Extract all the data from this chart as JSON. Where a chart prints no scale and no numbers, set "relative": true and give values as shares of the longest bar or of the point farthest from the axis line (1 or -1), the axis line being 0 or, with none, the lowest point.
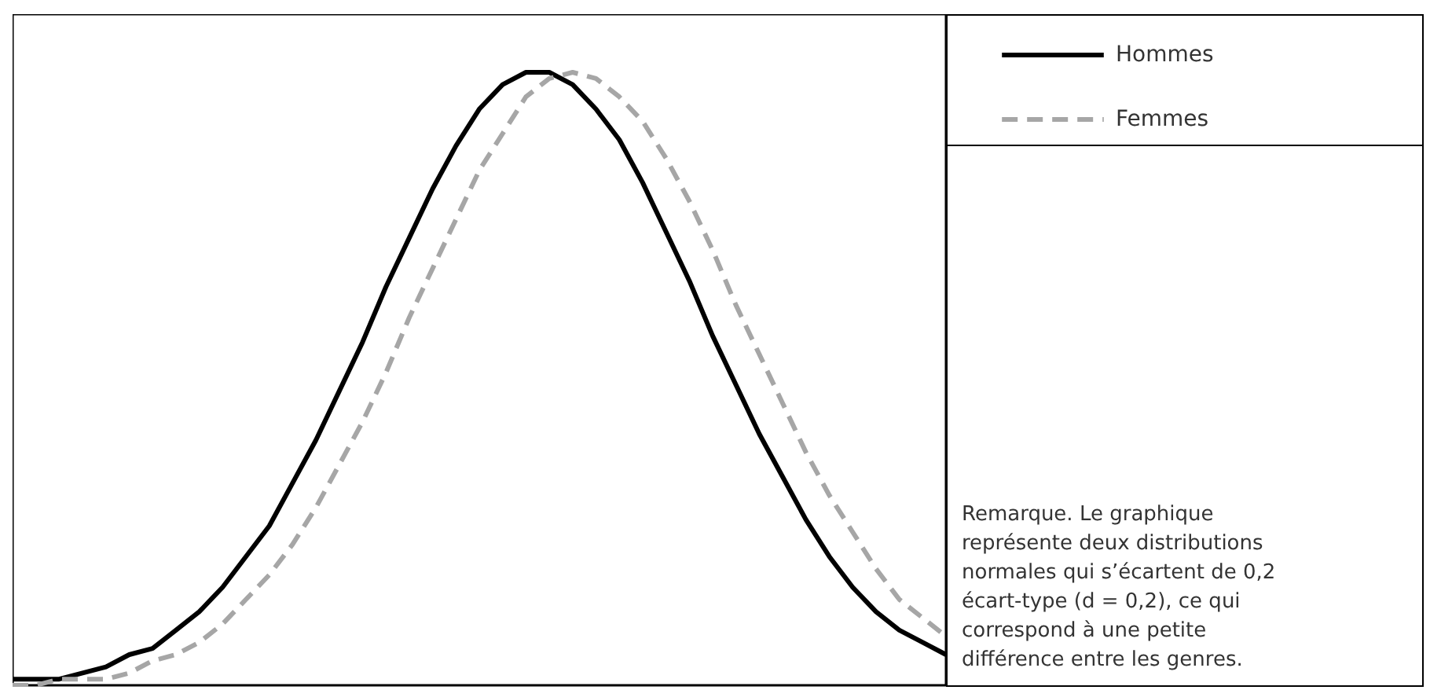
{
  "chart_data": {
    "type": "line",
    "relative": true,
    "legend": "top right",
    "marker": "none",
    "categories": [
      null,
      null,
      null,
      null,
      null,
      null,
      null,
      null,
      null,
      null,
      null,
      null,
      null,
      null,
      null,
      null,
      null,
      null,
      null,
      null,
      null,
      null,
      null,
      null,
      null,
      null,
      null,
      null,
      null,
      null,
      null,
      null,
      null,
      null,
      null,
      null,
      null,
      null,
      null,
      null,
      null
    ],
    "series": [
      {
        "name": "Hommes",
        "color": "#000000",
        "line_style": "solid",
        "values": [
          0.01,
          0.01,
          0.01,
          0.02,
          0.03,
          0.05,
          0.06,
          0.09,
          0.12,
          0.16,
          0.21,
          0.26,
          0.33,
          0.4,
          0.48,
          0.56,
          0.65,
          0.73,
          0.81,
          0.88,
          0.94,
          0.98,
          1.0,
          1.0,
          0.98,
          0.94,
          0.89,
          0.82,
          0.74,
          0.66,
          0.57,
          0.49,
          0.41,
          0.34,
          0.27,
          0.21,
          0.16,
          0.12,
          0.09,
          0.07,
          0.05
        ]
      },
      {
        "name": "Femmes",
        "color": "#a6a6a6",
        "line_style": "dashed",
        "values": [
          0.0,
          0.0,
          0.01,
          0.01,
          0.01,
          0.02,
          0.04,
          0.05,
          0.07,
          0.1,
          0.14,
          0.18,
          0.23,
          0.29,
          0.36,
          0.43,
          0.51,
          0.6,
          0.68,
          0.76,
          0.84,
          0.9,
          0.96,
          0.99,
          1.0,
          0.99,
          0.96,
          0.92,
          0.86,
          0.79,
          0.71,
          0.62,
          0.54,
          0.46,
          0.38,
          0.31,
          0.25,
          0.19,
          0.14,
          0.11,
          0.08
        ]
      }
    ],
    "annotations": [
      "Remarque. Le graphique représente deux distributions normales qui s’écartent de 0,2 écart-type (d = 0,2), ce qui correspond à une petite différence entre les genres."
    ]
  }
}
